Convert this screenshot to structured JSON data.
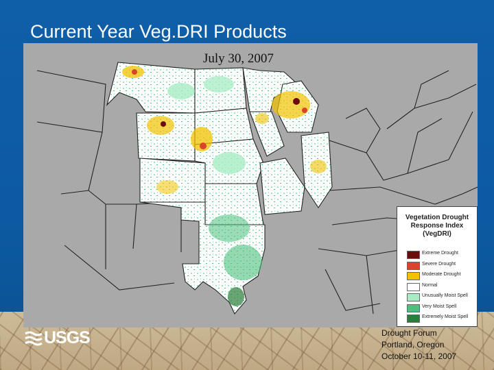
{
  "slide": {
    "title": "Current Year Veg.DRI Products"
  },
  "map": {
    "date": "July 30, 2007",
    "legend": {
      "title": "Vegetation Drought Response Index (VegDRI)",
      "items": [
        {
          "label": "Extreme Drought",
          "color": "#6b0d0d"
        },
        {
          "label": "Severe Drought",
          "color": "#d9452b"
        },
        {
          "label": "Moderate Drought",
          "color": "#f2c200"
        },
        {
          "label": "Normal",
          "color": "#ffffff"
        },
        {
          "label": "Unusually Moist Spell",
          "color": "#a8ecc4"
        },
        {
          "label": "Very Moist Spell",
          "color": "#4cc07f"
        },
        {
          "label": "Extremely Moist Spell",
          "color": "#2a7d3b"
        }
      ]
    }
  },
  "logo": {
    "text": "USGS"
  },
  "footer": {
    "line1": "Drought Forum",
    "line2": "Portland, Oregon",
    "line3": "October 10-11, 2007"
  }
}
